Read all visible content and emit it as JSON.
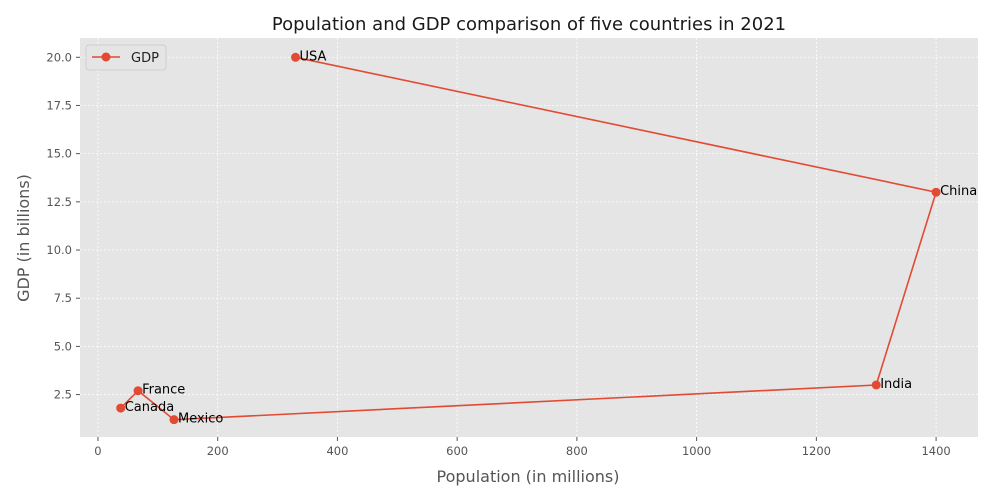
{
  "chart_data": {
    "type": "line",
    "title": "Population and GDP comparison of five countries in 2021",
    "xlabel": "Population (in millions)",
    "ylabel": "GDP (in billions)",
    "xlim": [
      -30,
      1470
    ],
    "ylim": [
      0.3,
      21
    ],
    "x_ticks": [
      0,
      200,
      400,
      600,
      800,
      1000,
      1200,
      1400
    ],
    "y_ticks": [
      2.5,
      5.0,
      7.5,
      10.0,
      12.5,
      15.0,
      17.5,
      20.0
    ],
    "x_tick_labels": [
      "0",
      "200",
      "400",
      "600",
      "800",
      "1000",
      "1200",
      "1400"
    ],
    "y_tick_labels": [
      "2.5",
      "5.0",
      "7.5",
      "10.0",
      "12.5",
      "15.0",
      "17.5",
      "20.0"
    ],
    "grid": true,
    "legend": "top-left",
    "series": [
      {
        "name": "GDP",
        "color": "#E24A33",
        "marker": "circle",
        "points": [
          {
            "label": "USA",
            "x": 330,
            "y": 20.0
          },
          {
            "label": "China",
            "x": 1400,
            "y": 13.0
          },
          {
            "label": "India",
            "x": 1300,
            "y": 3.0
          },
          {
            "label": "Mexico",
            "x": 127,
            "y": 1.2
          },
          {
            "label": "France",
            "x": 67,
            "y": 2.7
          },
          {
            "label": "Canada",
            "x": 38,
            "y": 1.8
          }
        ]
      }
    ]
  }
}
